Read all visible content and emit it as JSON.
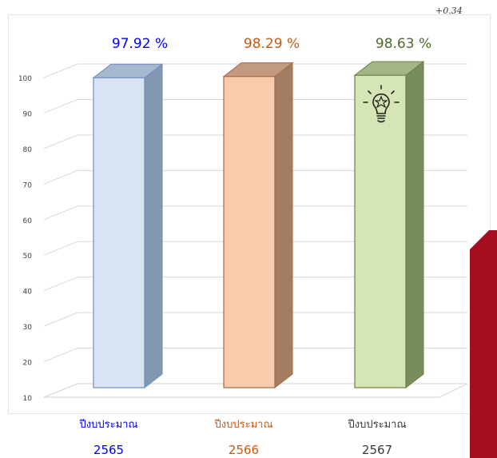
{
  "annotation": "+0.34",
  "chart_data": {
    "type": "bar",
    "categories": [
      {
        "label": "ปีงบประมาณ",
        "year": "2565"
      },
      {
        "label": "ปีงบประมาณ",
        "year": "2566"
      },
      {
        "label": "ปีงบประมาณ",
        "year": "2567"
      }
    ],
    "values": [
      97.92,
      98.29,
      98.63
    ],
    "data_labels": [
      "97.92 %",
      "98.29 %",
      "98.63 %"
    ],
    "yticks": [
      10,
      20,
      30,
      40,
      50,
      60,
      70,
      80,
      90,
      100
    ],
    "ylim": [
      10,
      100
    ],
    "grid": true,
    "style": "3d-column",
    "colors": {
      "bars": [
        {
          "front": "#dae3f3",
          "side": "#8497b0",
          "top": "#a6b7d0",
          "border": "#6d8ebf",
          "label": "#0000ff",
          "axis_label": "#0000ff"
        },
        {
          "front": "#f8cbad",
          "side": "#a37c62",
          "top": "#c29a80",
          "border": "#a66a45",
          "label": "#c55a11",
          "axis_label": "#c55a11"
        },
        {
          "front": "#d5e5b5",
          "side": "#788c5c",
          "top": "#a3b585",
          "border": "#6a8040",
          "label": "#4d6b2a",
          "axis_label": "#3a3a3a"
        }
      ],
      "accent_shape": "#a50e1f",
      "gridline": "#d9d9d9"
    },
    "icon": "lightbulb-icon"
  }
}
